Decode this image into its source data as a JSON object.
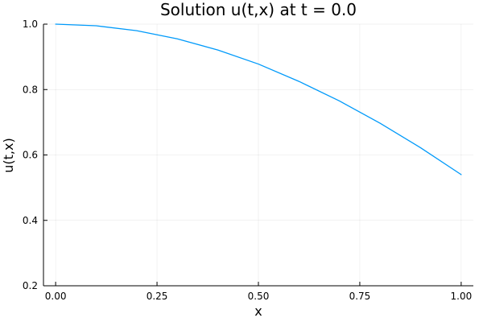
{
  "chart_data": {
    "type": "line",
    "title": "Solution u(t,x) at t = 0.0",
    "xlabel": "x",
    "ylabel": "u(t,x)",
    "xlim": [
      -0.03,
      1.03
    ],
    "ylim": [
      0.2,
      1.0
    ],
    "xticks": [
      0.0,
      0.25,
      0.5,
      0.75,
      1.0
    ],
    "xtick_labels": [
      "0.00",
      "0.25",
      "0.50",
      "0.75",
      "1.00"
    ],
    "yticks": [
      0.2,
      0.4,
      0.6,
      0.8,
      1.0
    ],
    "ytick_labels": [
      "0.2",
      "0.4",
      "0.6",
      "0.8",
      "1.0"
    ],
    "grid": true,
    "legend": "none",
    "series": [
      {
        "color": "#009AFA",
        "x": [
          0.0,
          0.1,
          0.2,
          0.3,
          0.4,
          0.5,
          0.6,
          0.7,
          0.8,
          0.9,
          1.0
        ],
        "y": [
          1.0,
          0.995,
          0.98,
          0.955,
          0.921,
          0.878,
          0.825,
          0.765,
          0.697,
          0.622,
          0.54
        ]
      }
    ]
  }
}
